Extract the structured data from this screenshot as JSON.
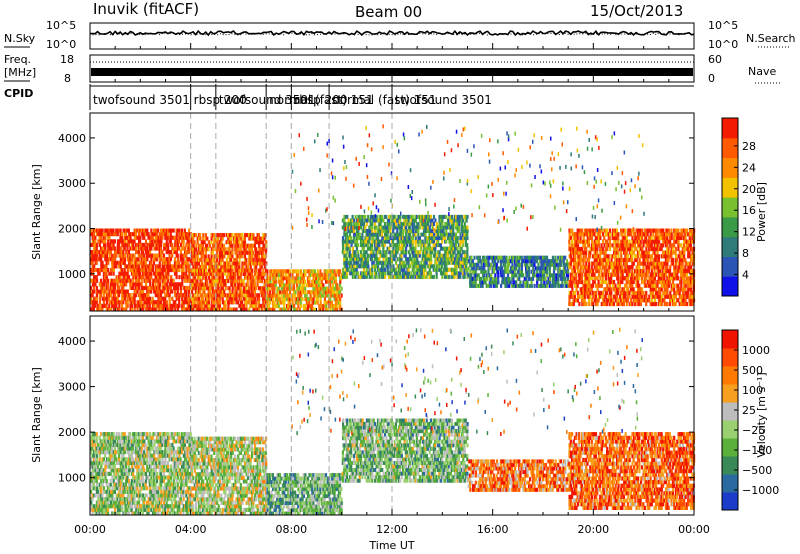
{
  "header": {
    "station": "Inuvik (fitACF)",
    "beam": "Beam 00",
    "date": "15/Oct/2013"
  },
  "left_labels": {
    "nsky": "N.Sky",
    "freq_line1": "Freq.",
    "freq_line2": "[MHz]",
    "cpid": "CPID"
  },
  "right_labels": {
    "nsearch": "N.Search",
    "nave": "Nave"
  },
  "nsky_axis": {
    "top": "10^5",
    "bottom": "10^0"
  },
  "nsearch_axis": {
    "top": "10^5",
    "bottom": "10^0"
  },
  "freq_axis": {
    "top": "18",
    "bottom": "8"
  },
  "nave_axis": {
    "top": "60",
    "bottom": "0"
  },
  "cpid_segments": [
    {
      "label": "twofsound 3501",
      "start": 0.0,
      "end": 4.0
    },
    {
      "label": "rbsp 200",
      "start": 4.0,
      "end": 5.0
    },
    {
      "label": "twofsound 3501",
      "start": 5.0,
      "end": 7.0
    },
    {
      "label": "normal (fast) 151",
      "start": 7.0,
      "end": 8.0
    },
    {
      "label": "rbsp 200",
      "start": 8.0,
      "end": 9.5
    },
    {
      "label": "normal (fast) 151",
      "start": 9.5,
      "end": 12.0
    },
    {
      "label": "twofsound 3501",
      "start": 12.0,
      "end": 24.0
    }
  ],
  "chart_data": [
    {
      "type": "heatmap",
      "quantity": "power",
      "ylabel": "Slant Range [km]",
      "xlabel": "Time UT",
      "xlim": [
        0,
        24
      ],
      "ylim": [
        180,
        4550
      ],
      "y_ticks": [
        1000,
        2000,
        3000,
        4000
      ],
      "x_tick_labels": [
        "00:00",
        "04:00",
        "08:00",
        "12:00",
        "16:00",
        "20:00",
        "00:00"
      ],
      "colorbar": {
        "label": "Power [dB]",
        "ticks": [
          "4",
          "8",
          "12",
          "16",
          "20",
          "24",
          "28"
        ],
        "colors": [
          "#1010e8",
          "#2a55b4",
          "#2f7a7a",
          "#3a9a46",
          "#78c02e",
          "#f2c200",
          "#ff8a00",
          "#ff5a00",
          "#f41c00"
        ]
      },
      "regions": [
        {
          "t0": 0.0,
          "t1": 4.0,
          "r0": 180,
          "r1": 2000,
          "level": 0.9
        },
        {
          "t0": 4.0,
          "t1": 7.0,
          "r0": 180,
          "r1": 1900,
          "level": 0.85
        },
        {
          "t0": 7.0,
          "t1": 10.0,
          "r0": 180,
          "r1": 1100,
          "level": 0.7
        },
        {
          "t0": 10.0,
          "t1": 15.0,
          "r0": 900,
          "r1": 2300,
          "level": 0.4
        },
        {
          "t0": 15.0,
          "t1": 19.0,
          "r0": 700,
          "r1": 1400,
          "level": 0.3
        },
        {
          "t0": 19.0,
          "t1": 24.0,
          "r0": 300,
          "r1": 2000,
          "level": 0.85
        }
      ]
    },
    {
      "type": "heatmap",
      "quantity": "velocity",
      "ylabel": "Slant Range [km]",
      "xlabel": "Time UT",
      "xlim": [
        0,
        24
      ],
      "ylim": [
        180,
        4550
      ],
      "y_ticks": [
        1000,
        2000,
        3000,
        4000
      ],
      "x_tick_labels": [
        "00:00",
        "04:00",
        "08:00",
        "12:00",
        "16:00",
        "20:00",
        "00:00"
      ],
      "colorbar": {
        "label": "Velocity [m s⁻¹]",
        "ticks": [
          "1000",
          "500",
          "100",
          "25",
          "−25",
          "−100",
          "−500",
          "−1000"
        ],
        "colors": [
          "#1a3cc8",
          "#2a6aa0",
          "#3a8a58",
          "#5ab03a",
          "#9ad070",
          "#bdbdbd",
          "#f7a020",
          "#ff7a00",
          "#ff4a00",
          "#f01400"
        ]
      },
      "regions": [
        {
          "t0": 0.0,
          "t1": 4.0,
          "r0": 180,
          "r1": 2000,
          "level": 0.45
        },
        {
          "t0": 4.0,
          "t1": 7.0,
          "r0": 180,
          "r1": 1900,
          "level": 0.5
        },
        {
          "t0": 7.0,
          "t1": 10.0,
          "r0": 180,
          "r1": 1100,
          "level": 0.35
        },
        {
          "t0": 10.0,
          "t1": 15.0,
          "r0": 900,
          "r1": 2300,
          "level": 0.4
        },
        {
          "t0": 15.0,
          "t1": 19.0,
          "r0": 700,
          "r1": 1400,
          "level": 0.75
        },
        {
          "t0": 19.0,
          "t1": 24.0,
          "r0": 300,
          "r1": 2000,
          "level": 0.8
        }
      ]
    }
  ]
}
